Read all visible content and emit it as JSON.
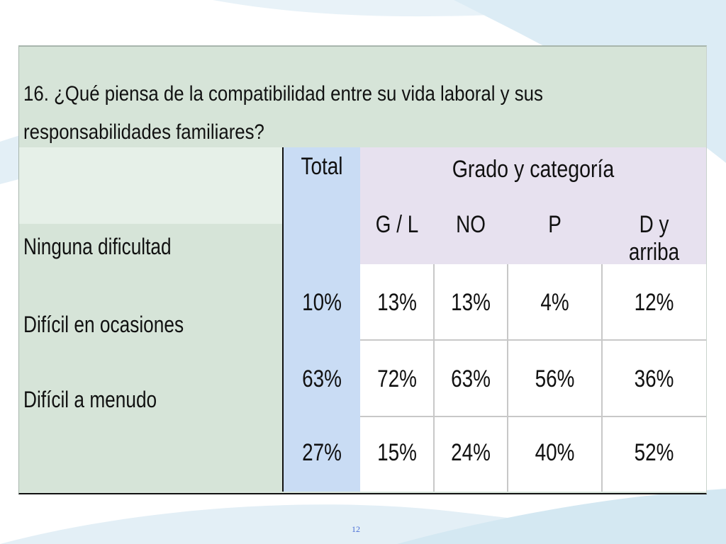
{
  "question": "16. ¿Qué piensa de la compatibilidad entre su vida laboral y sus responsabilidades familiares?",
  "table": {
    "total_header": "Total",
    "group_header": "Grado y categoría",
    "subheaders": [
      "G / L",
      "NO",
      "P",
      "D y arriba"
    ],
    "rows": [
      {
        "label": "Ninguna dificultad",
        "total": "10%",
        "values": [
          "13%",
          "13%",
          "4%",
          "12%"
        ]
      },
      {
        "label": "Difícil en ocasiones",
        "total": "63%",
        "values": [
          "72%",
          "63%",
          "56%",
          "36%"
        ]
      },
      {
        "label": "Difícil a menudo",
        "total": "27%",
        "values": [
          "15%",
          "24%",
          "40%",
          "52%"
        ]
      }
    ]
  },
  "page_number": "12",
  "colors": {
    "question_bg": "#d6e4d8",
    "total_col": "#c9dcf4",
    "group_header_bg": "#e7e1ef",
    "page_number": "#4a6fd6"
  }
}
